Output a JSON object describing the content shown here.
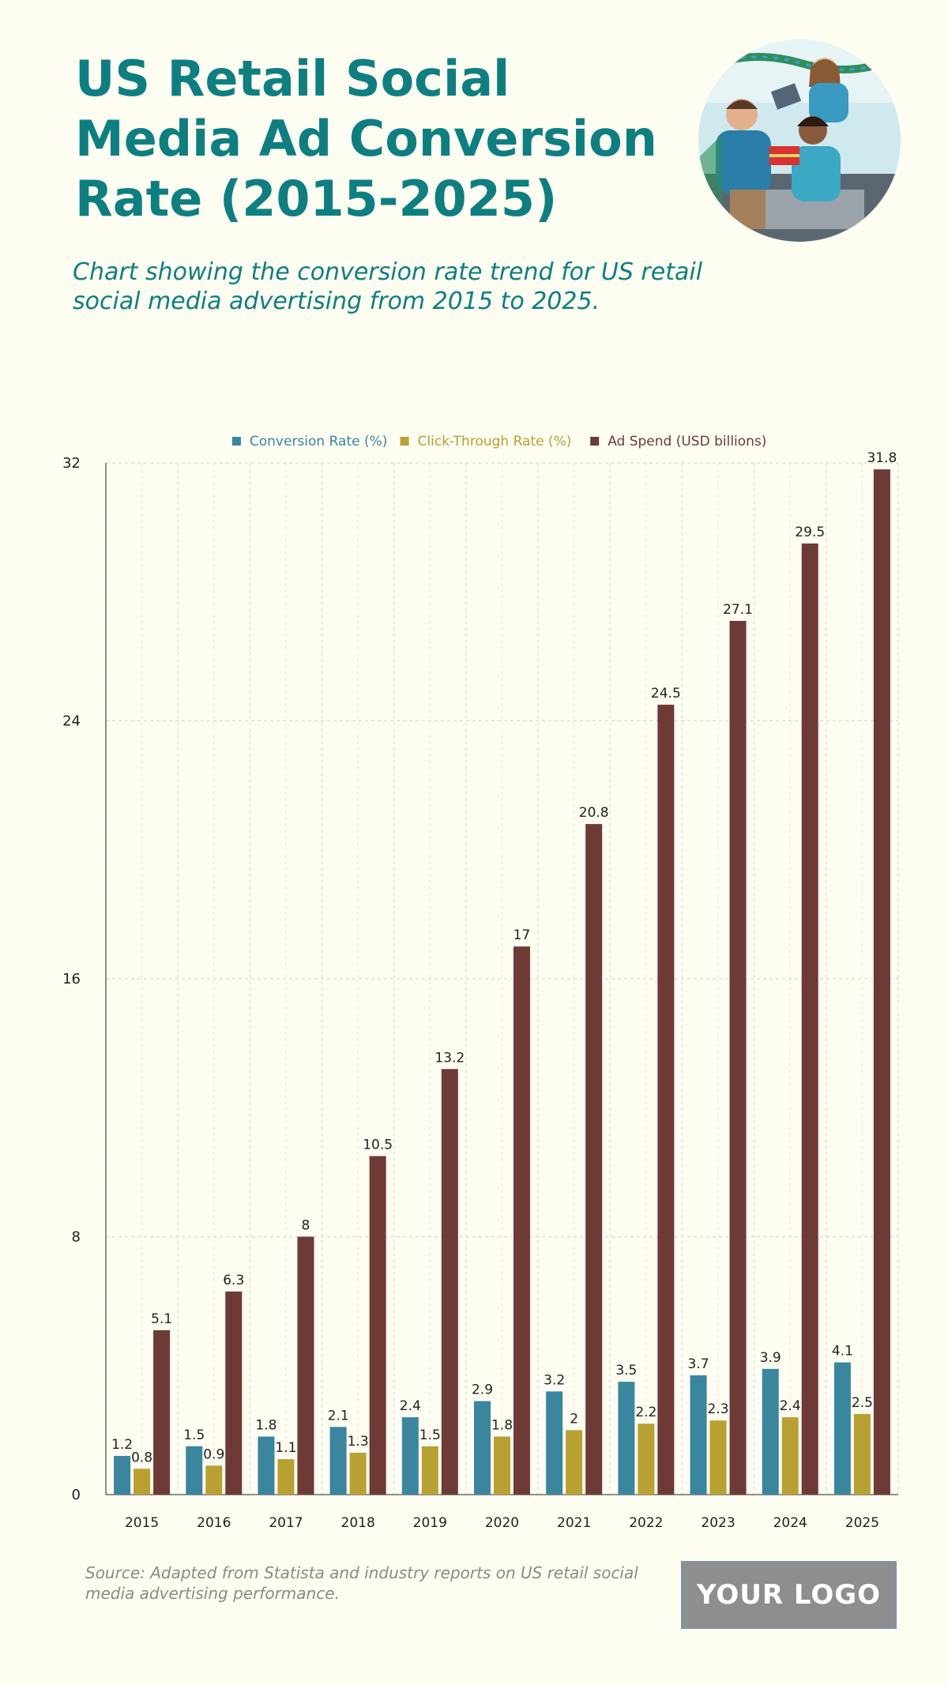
{
  "header": {
    "title": "US Retail Social Media Ad Conversion Rate (2015-2025)",
    "subtitle": "Chart showing the conversion rate trend for US retail social media advertising from 2015 to 2025."
  },
  "photo": {
    "icon": "people-shopping-photo"
  },
  "chart_data": {
    "type": "bar",
    "categories": [
      "2015",
      "2016",
      "2017",
      "2018",
      "2019",
      "2020",
      "2021",
      "2022",
      "2023",
      "2024",
      "2025"
    ],
    "series": [
      {
        "name": "Conversion Rate (%)",
        "color": "#3a869e",
        "values": [
          1.2,
          1.5,
          1.8,
          2.1,
          2.4,
          2.9,
          3.2,
          3.5,
          3.7,
          3.9,
          4.1
        ]
      },
      {
        "name": "Click-Through Rate (%)",
        "color": "#b9a032",
        "values": [
          0.8,
          0.9,
          1.1,
          1.3,
          1.5,
          1.8,
          2,
          2.2,
          2.3,
          2.4,
          2.5
        ]
      },
      {
        "name": "Ad Spend (USD billions)",
        "color": "#6e3a35",
        "values": [
          5.1,
          6.3,
          8,
          10.5,
          13.2,
          17,
          20.8,
          24.5,
          27.1,
          29.5,
          31.8
        ]
      }
    ],
    "yticks": [
      0,
      8,
      16,
      24,
      32
    ],
    "ylim": [
      0,
      32
    ],
    "grid": true,
    "legend_position": "top-center"
  },
  "footer": {
    "source": "Source: Adapted from Statista and industry reports on US retail social media advertising performance.",
    "logo": "YOUR LOGO"
  }
}
